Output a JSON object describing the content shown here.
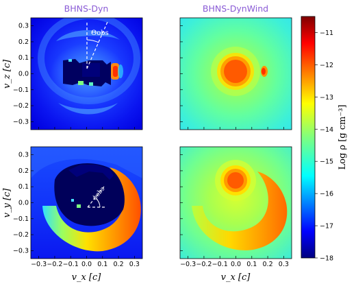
{
  "chart_data": {
    "type": "heatmap",
    "panels": [
      {
        "id": "dyn-xz",
        "title": "BHNS-Dyn",
        "xlabel": "",
        "ylabel": "v_z [c]",
        "annotation": "Θobs"
      },
      {
        "id": "dynwind-xz",
        "title": "BHNS-DynWind",
        "xlabel": "",
        "ylabel": ""
      },
      {
        "id": "dyn-xy",
        "title": "",
        "xlabel": "v_x [c]",
        "ylabel": "v_y [c]",
        "annotation": "ϕobs"
      },
      {
        "id": "dynwind-xy",
        "title": "",
        "xlabel": "v_x [c]",
        "ylabel": ""
      }
    ],
    "x_ticks": [
      "−0.3",
      "−0.2",
      "−0.1",
      "0.0",
      "0.1",
      "0.2",
      "0.3"
    ],
    "y_ticks": [
      "0.3",
      "0.2",
      "0.1",
      "0.0",
      "−0.1",
      "−0.2",
      "−0.3"
    ],
    "xlim": [
      -0.35,
      0.35
    ],
    "ylim": [
      -0.35,
      0.35
    ],
    "colorbar": {
      "label": "Log ρ [g cm⁻³]",
      "range": [
        -18,
        -10.5
      ],
      "ticks": [
        "−11",
        "−12",
        "−13",
        "−14",
        "−15",
        "−16",
        "−17",
        "−18"
      ],
      "colormap": "jet"
    }
  }
}
